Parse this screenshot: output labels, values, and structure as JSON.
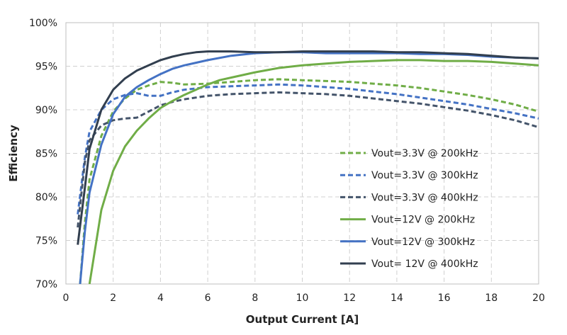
{
  "chart_data": {
    "type": "line",
    "title": "",
    "xlabel": "Output Current [A]",
    "ylabel": "Efficiency",
    "xlim": [
      0,
      20
    ],
    "ylim": [
      70,
      100
    ],
    "x_ticks": [
      0,
      2,
      4,
      6,
      8,
      10,
      12,
      14,
      16,
      18,
      20
    ],
    "y_ticks": [
      70,
      75,
      80,
      85,
      90,
      95,
      100
    ],
    "y_tick_labels": [
      "70%",
      "75%",
      "80%",
      "85%",
      "90%",
      "95%",
      "100%"
    ],
    "grid": true,
    "legend_position": "right",
    "series": [
      {
        "name": "Vout=3.3V @ 200kHz",
        "color": "#70ad47",
        "dash": true,
        "x": [
          0.6,
          0.8,
          1,
          1.5,
          2,
          2.5,
          3,
          3.5,
          4,
          4.5,
          5,
          6,
          7,
          8,
          9,
          10,
          11,
          12,
          13,
          14,
          15,
          16,
          17,
          18,
          19,
          20
        ],
        "y": [
          70.0,
          77.0,
          82.0,
          87.0,
          89.8,
          91.3,
          92.3,
          92.8,
          93.2,
          93.1,
          92.9,
          93.0,
          93.2,
          93.4,
          93.5,
          93.4,
          93.3,
          93.2,
          93.0,
          92.8,
          92.5,
          92.1,
          91.7,
          91.2,
          90.6,
          89.8
        ]
      },
      {
        "name": "Vout=3.3V @ 300kHz",
        "color": "#4472c4",
        "dash": true,
        "x": [
          0.5,
          0.8,
          1,
          1.5,
          2,
          2.5,
          3,
          3.5,
          4,
          4.5,
          5,
          6,
          7,
          8,
          9,
          10,
          11,
          12,
          13,
          14,
          15,
          16,
          17,
          18,
          19,
          20
        ],
        "y": [
          78.0,
          84.5,
          87.5,
          90.0,
          91.2,
          91.7,
          91.9,
          91.6,
          91.6,
          92.0,
          92.3,
          92.6,
          92.7,
          92.8,
          92.9,
          92.8,
          92.6,
          92.4,
          92.1,
          91.8,
          91.4,
          91.0,
          90.6,
          90.1,
          89.6,
          89.0
        ]
      },
      {
        "name": "Vout=3.3V @ 400kHz",
        "color": "#44546a",
        "dash": true,
        "x": [
          0.5,
          0.8,
          1,
          1.5,
          2,
          2.5,
          3,
          3.5,
          4,
          4.5,
          5,
          6,
          7,
          8,
          9,
          10,
          11,
          12,
          13,
          14,
          15,
          16,
          17,
          18,
          19,
          20
        ],
        "y": [
          76.5,
          84.0,
          86.5,
          88.2,
          88.8,
          89.0,
          89.1,
          89.8,
          90.5,
          90.9,
          91.2,
          91.6,
          91.8,
          91.9,
          92.0,
          91.9,
          91.8,
          91.6,
          91.3,
          91.0,
          90.7,
          90.3,
          89.9,
          89.4,
          88.8,
          88.0
        ]
      },
      {
        "name": "Vout=12V @ 200kHz",
        "color": "#70ad47",
        "dash": false,
        "x": [
          1,
          1.5,
          2,
          2.5,
          3,
          3.5,
          4,
          4.5,
          5,
          5.5,
          6,
          6.5,
          7,
          8,
          9,
          10,
          11,
          12,
          13,
          14,
          15,
          16,
          17,
          18,
          19,
          20
        ],
        "y": [
          70.0,
          78.5,
          83.0,
          85.8,
          87.6,
          89.0,
          90.2,
          91.0,
          91.7,
          92.3,
          92.9,
          93.4,
          93.7,
          94.3,
          94.8,
          95.1,
          95.3,
          95.5,
          95.6,
          95.7,
          95.7,
          95.6,
          95.6,
          95.5,
          95.3,
          95.1
        ]
      },
      {
        "name": "Vout=12V @ 300kHz",
        "color": "#4472c4",
        "dash": false,
        "x": [
          0.6,
          0.8,
          1,
          1.5,
          2,
          2.5,
          3,
          3.5,
          4,
          4.5,
          5,
          5.5,
          6,
          7,
          8,
          9,
          10,
          11,
          12,
          13,
          14,
          15,
          16,
          17,
          18,
          19,
          20
        ],
        "y": [
          70.0,
          76.0,
          80.5,
          86.0,
          89.5,
          91.5,
          92.6,
          93.4,
          94.1,
          94.7,
          95.1,
          95.4,
          95.7,
          96.2,
          96.5,
          96.6,
          96.6,
          96.5,
          96.5,
          96.5,
          96.5,
          96.4,
          96.4,
          96.3,
          96.1,
          96.0,
          95.9
        ]
      },
      {
        "name": "Vout= 12V @ 400kHz",
        "color": "#323f4f",
        "dash": false,
        "x": [
          0.5,
          0.8,
          1,
          1.5,
          2,
          2.5,
          3,
          3.5,
          4,
          4.5,
          5,
          5.5,
          6,
          6.5,
          7,
          8,
          9,
          10,
          11,
          12,
          13,
          14,
          15,
          16,
          17,
          18,
          19,
          20
        ],
        "y": [
          74.5,
          81.0,
          85.5,
          90.0,
          92.3,
          93.6,
          94.5,
          95.1,
          95.7,
          96.1,
          96.4,
          96.6,
          96.7,
          96.7,
          96.7,
          96.6,
          96.6,
          96.7,
          96.7,
          96.7,
          96.7,
          96.6,
          96.6,
          96.5,
          96.4,
          96.2,
          96.0,
          95.9
        ]
      }
    ]
  }
}
